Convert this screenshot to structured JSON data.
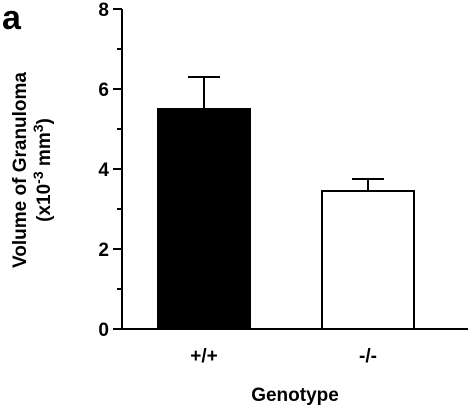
{
  "panel_label": "a",
  "chart_data": {
    "type": "bar",
    "categories": [
      "+/+",
      "-/-"
    ],
    "values": [
      5.5,
      3.45
    ],
    "errors": [
      0.8,
      0.3
    ],
    "fills": [
      "#000000",
      "#ffffff"
    ],
    "xlabel": "Genotype",
    "ylabel_line1": "Volume of Granuloma",
    "ylabel_line2_prefix": "(x10",
    "ylabel_line2_exp": "-3",
    "ylabel_line2_suffix": " mm",
    "ylabel_line2_unit_exp": "3",
    "ylabel_line2_close": ")",
    "ylim": [
      0,
      8
    ],
    "yticks": [
      0,
      2,
      4,
      6,
      8
    ]
  }
}
